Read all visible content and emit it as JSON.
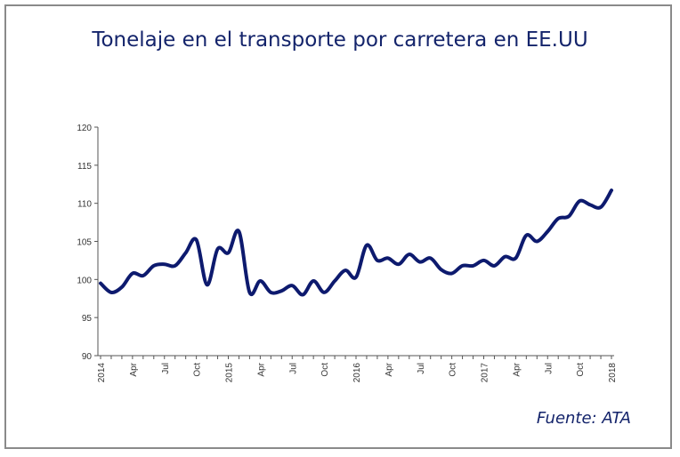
{
  "chart_data": {
    "type": "line",
    "title": "Tonelaje en el transporte por carretera en EE.UU",
    "source": "Fuente: ATA",
    "xlabel": "",
    "ylabel": "",
    "ylim": [
      90,
      120
    ],
    "yticks": [
      90,
      95,
      100,
      105,
      110,
      115,
      120
    ],
    "xticks": [
      "2014",
      "Apr",
      "Jul",
      "Oct",
      "2015",
      "Apr",
      "Jul",
      "Oct",
      "2016",
      "Apr",
      "Jul",
      "Oct",
      "2017",
      "Apr",
      "Jul",
      "Oct",
      "2018"
    ],
    "x_start": "2014-01",
    "x_end": "2018-01",
    "frequency": "monthly",
    "grid": false,
    "line_color": "#0d1a6e",
    "values": [
      99.5,
      98.3,
      99.0,
      100.8,
      100.5,
      101.8,
      102.0,
      101.8,
      103.5,
      105.2,
      99.3,
      104.0,
      103.5,
      106.3,
      98.3,
      99.8,
      98.3,
      98.5,
      99.2,
      98.0,
      99.8,
      98.3,
      99.8,
      101.2,
      100.3,
      104.5,
      102.5,
      102.8,
      102.0,
      103.3,
      102.3,
      102.8,
      101.3,
      100.8,
      101.8,
      101.8,
      102.5,
      101.8,
      103.0,
      102.8,
      105.8,
      105.0,
      106.3,
      108.0,
      108.3,
      110.3,
      109.8,
      109.5,
      111.7
    ]
  }
}
